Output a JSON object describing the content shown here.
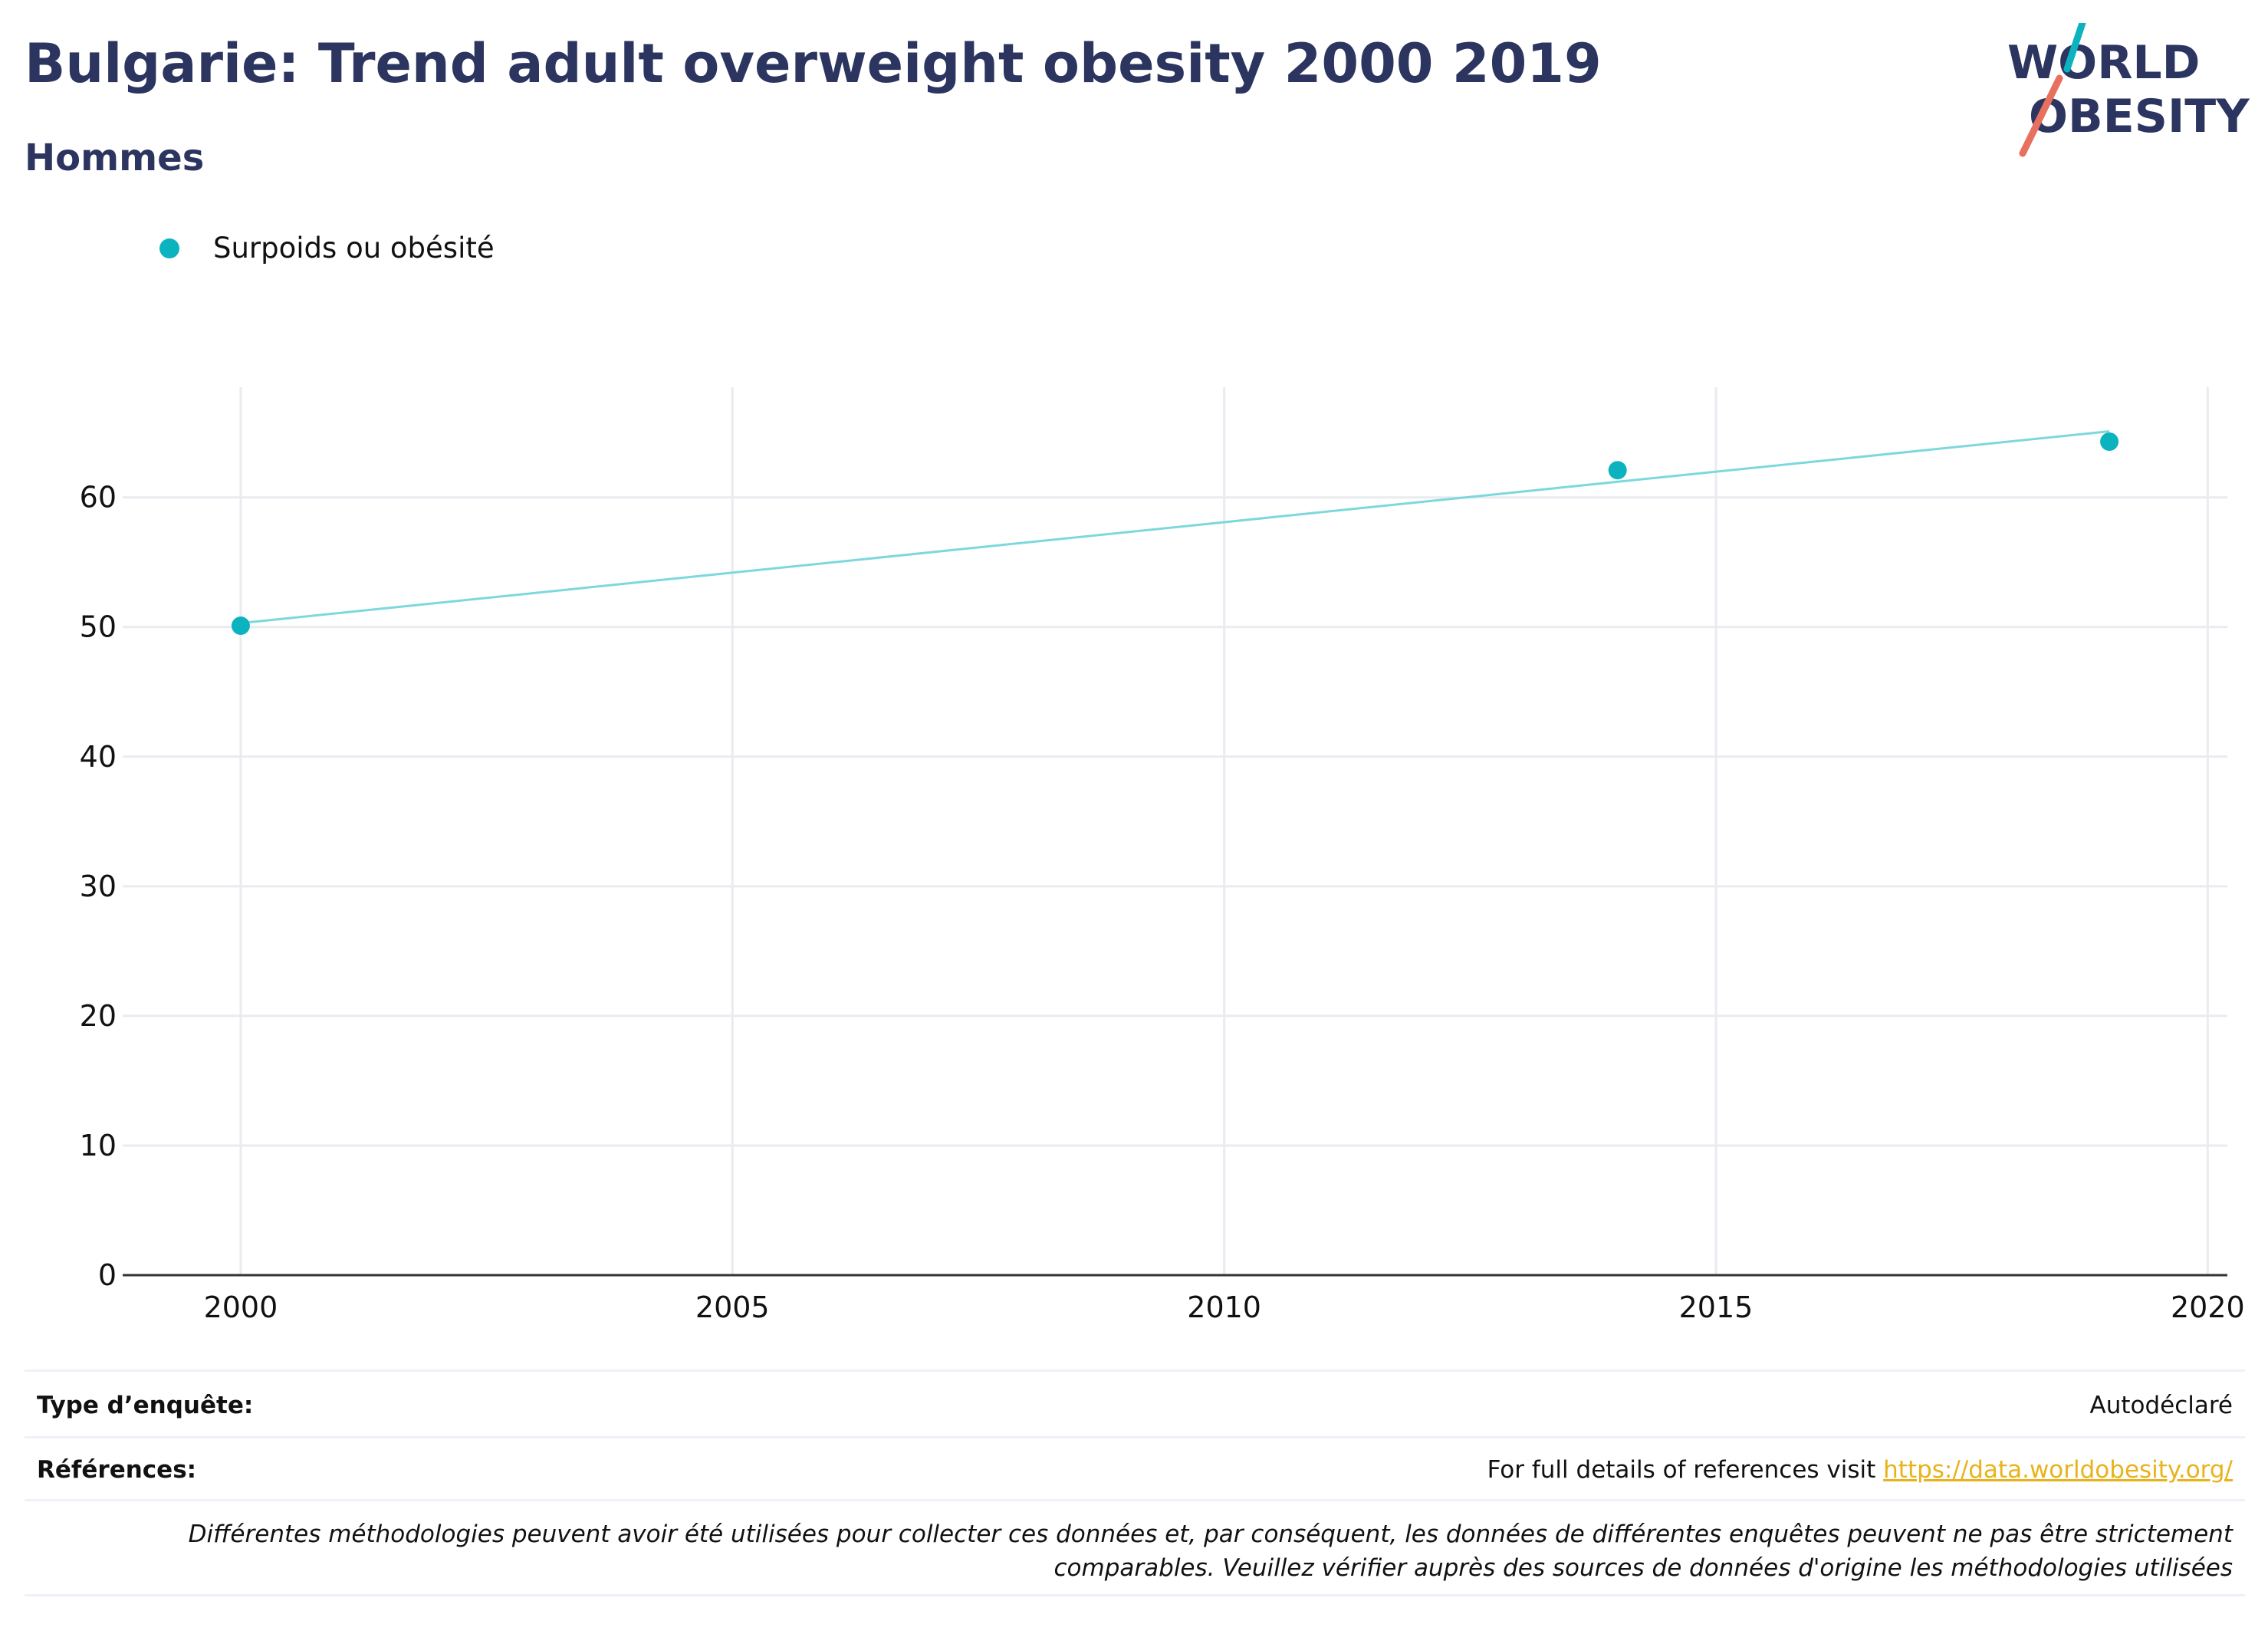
{
  "header": {
    "title": "Bulgarie: Trend adult overweight obesity 2000 2019",
    "subtitle": "Hommes"
  },
  "logo": {
    "line1": "WORLD",
    "line2": "OBESITY"
  },
  "colors": {
    "navy": "#2b3560",
    "teal": "#0bb3bf",
    "trend": "#7dd8dc",
    "salmon": "#e8705f",
    "link": "#e8b31a"
  },
  "chart_data": {
    "type": "scatter",
    "series": [
      {
        "name": "Surpoids ou obésité",
        "x": [
          2000,
          2014,
          2019
        ],
        "y": [
          50.1,
          62.1,
          64.3
        ]
      }
    ],
    "trendline": {
      "x": [
        2000,
        2019
      ],
      "y": [
        50.3,
        65.1
      ]
    },
    "xlim": [
      1998.8,
      2020.2
    ],
    "ylim": [
      0,
      68.5
    ],
    "xticks": [
      2000,
      2005,
      2010,
      2015,
      2020
    ],
    "yticks": [
      0,
      10,
      20,
      30,
      40,
      50,
      60
    ],
    "grid": true,
    "legend": "top-left"
  },
  "footer": {
    "survey_label": "Type d’enquête:",
    "survey_value": "Autodéclaré",
    "refs_label": "Références:",
    "refs_text": "For full details of references visit ",
    "refs_link": "https://data.worldobesity.org/",
    "note_line1": "Différentes méthodologies peuvent avoir été utilisées pour collecter ces données et, par conséquent, les données de différentes enquêtes peuvent ne pas être strictement",
    "note_line2": "comparables. Veuillez vérifier auprès des sources de données d'origine les méthodologies utilisées"
  }
}
